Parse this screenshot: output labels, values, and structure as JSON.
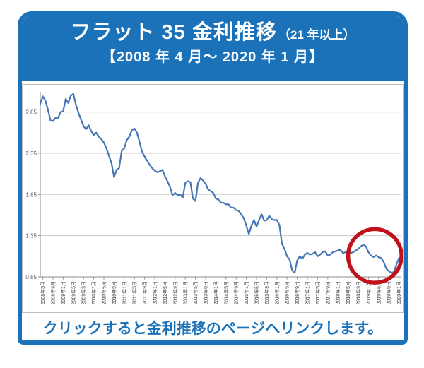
{
  "colors": {
    "brand_blue": "#1b72b8",
    "line_blue": "#4576b5",
    "annotation_red": "#c1121c",
    "gridline_gray": "#cccccc",
    "axis_gray": "#8c8c8c"
  },
  "header": {
    "title_main": "フラット 35 金利推移",
    "title_paren": "（21 年以上）",
    "subtitle": "【2008 年 4 月～ 2020 年 1 月】"
  },
  "footer": {
    "link_hint": "クリックすると金利推移のページへリンクします。"
  },
  "chart_data": {
    "type": "line",
    "title": "フラット35 金利推移（21年以上）【2008年4月～2020年1月】",
    "x_start": "2008年4月",
    "x_end": "2020年1月",
    "points": 142,
    "x_tick_first_index": 1,
    "x_tick_interval_months": 4,
    "x_tick_labels": [
      "2008年5月",
      "2008年9月",
      "2009年1月",
      "2009年5月",
      "2009年9月",
      "2010年1月",
      "2010年5月",
      "2010年9月",
      "2011年1月",
      "2011年5月",
      "2011年9月",
      "2012年1月",
      "2012年5月",
      "2012年9月",
      "2013年1月",
      "2013年5月",
      "2013年9月",
      "2014年1月",
      "2014年5月",
      "2014年9月",
      "2015年1月",
      "2015年5月",
      "2015年9月",
      "2016年1月",
      "2016年5月",
      "2016年9月",
      "2017年1月",
      "2017年5月",
      "2017年9月",
      "2018年1月",
      "2018年5月",
      "2018年9月",
      "2019年1月",
      "2019年5月",
      "2019年9月",
      "2020年1月"
    ],
    "y_ticks": [
      "2.85",
      "2.35",
      "1.85",
      "1.35",
      "0.85"
    ],
    "ylim": [
      0.85,
      3.1
    ],
    "grid": true,
    "legend": "none",
    "values": [
      2.95,
      3.04,
      2.99,
      2.88,
      2.75,
      2.74,
      2.78,
      2.78,
      2.85,
      2.86,
      3.01,
      2.96,
      3.05,
      3.07,
      2.94,
      2.84,
      2.76,
      2.68,
      2.64,
      2.69,
      2.62,
      2.57,
      2.6,
      2.55,
      2.52,
      2.48,
      2.41,
      2.32,
      2.23,
      2.06,
      2.15,
      2.17,
      2.38,
      2.41,
      2.51,
      2.55,
      2.63,
      2.65,
      2.6,
      2.49,
      2.37,
      2.31,
      2.26,
      2.21,
      2.17,
      2.14,
      2.12,
      2.13,
      2.15,
      2.07,
      2.01,
      1.94,
      1.84,
      1.87,
      1.84,
      1.85,
      1.81,
      1.99,
      2.01,
      2.0,
      1.8,
      1.77,
      1.99,
      2.05,
      2.02,
      1.98,
      1.91,
      1.89,
      1.87,
      1.8,
      1.79,
      1.75,
      1.75,
      1.73,
      1.73,
      1.69,
      1.69,
      1.66,
      1.65,
      1.61,
      1.56,
      1.47,
      1.37,
      1.47,
      1.54,
      1.46,
      1.54,
      1.61,
      1.53,
      1.54,
      1.59,
      1.55,
      1.54,
      1.54,
      1.48,
      1.25,
      1.19,
      1.1,
      1.06,
      0.93,
      0.9,
      1.05,
      1.1,
      1.07,
      1.12,
      1.14,
      1.12,
      1.13,
      1.15,
      1.1,
      1.12,
      1.15,
      1.16,
      1.11,
      1.12,
      1.15,
      1.16,
      1.17,
      1.18,
      1.14,
      1.15,
      1.16,
      1.14,
      1.15,
      1.17,
      1.19,
      1.22,
      1.24,
      1.22,
      1.15,
      1.11,
      1.09,
      1.11,
      1.09,
      1.08,
      1.03,
      0.95,
      0.92,
      0.9,
      0.91,
      1.0,
      1.08
    ],
    "annotation": {
      "shape": "ellipse",
      "color": "#c1121c",
      "center_month_index": 131.5,
      "center_value": 1.105,
      "radius_months": 10.5,
      "radius_value": 0.325,
      "stroke_width": 5.5
    }
  }
}
